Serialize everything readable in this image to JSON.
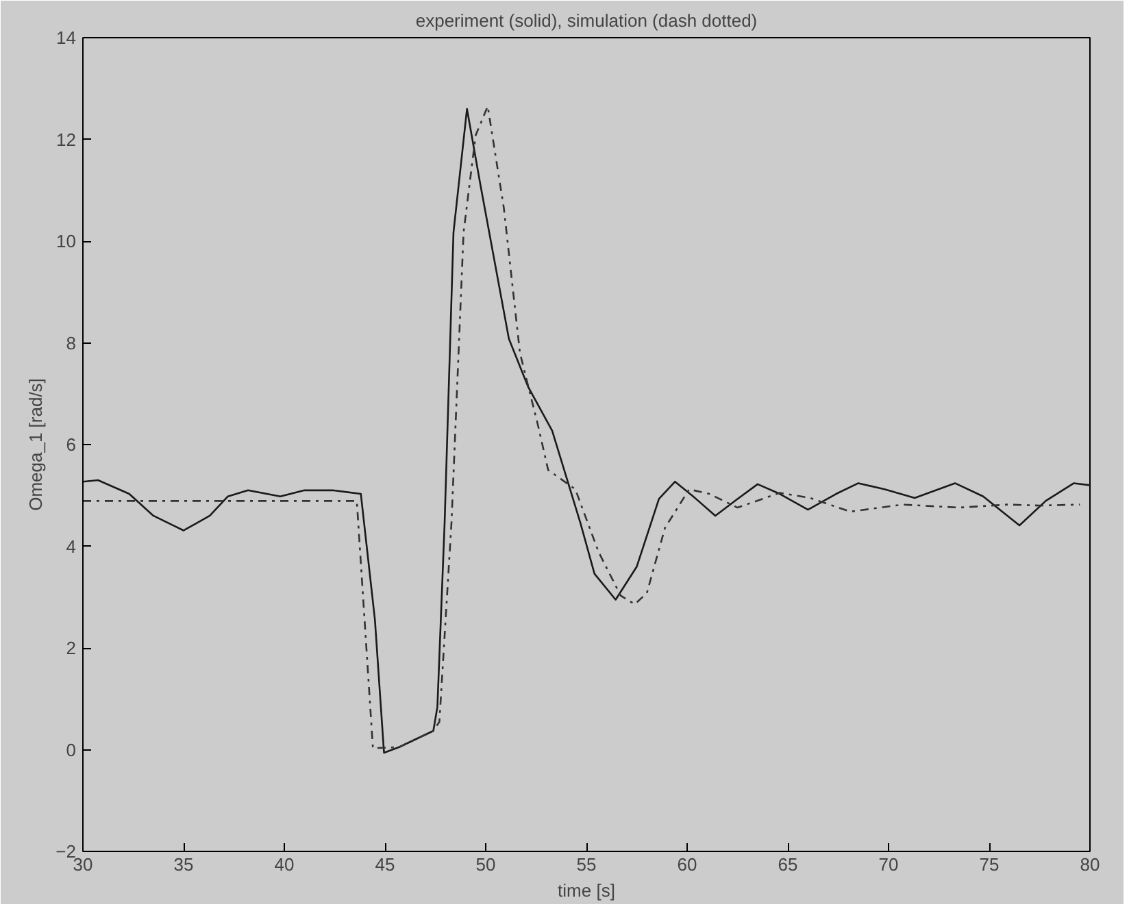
{
  "chart_data": {
    "type": "line",
    "title": "experiment (solid), simulation (dash dotted)",
    "xlabel": "time [s]",
    "ylabel": "Omega_1 [rad/s]",
    "xlim": [
      30,
      80
    ],
    "xticks": [
      30,
      35,
      40,
      45,
      50,
      55,
      60,
      65,
      70,
      75,
      80
    ],
    "ylim": [
      -2,
      14
    ],
    "yticks": [
      -2,
      0,
      2,
      4,
      6,
      8,
      10,
      12,
      14
    ],
    "grid": false,
    "marker": "none",
    "series": [
      {
        "color": "#1a1a1a",
        "line_style": "solid",
        "x": [
          30,
          30.75,
          32.3,
          33.5,
          35.0,
          36.3,
          37.2,
          38.2,
          39.8,
          41.0,
          42.4,
          43.8,
          44.5,
          44.95,
          45.7,
          47.4,
          47.6,
          47.96,
          48.4,
          49.07,
          49.73,
          51.15,
          52.1,
          53.3,
          54.7,
          55.4,
          56.45,
          57.5,
          58.6,
          59.4,
          60.3,
          61.4,
          62.5,
          63.5,
          64.6,
          66.0,
          67.4,
          68.5,
          69.8,
          71.3,
          73.3,
          74.7,
          76.5,
          77.8,
          79.2,
          80
        ],
        "values": [
          5.27,
          5.3,
          5.03,
          4.6,
          4.31,
          4.6,
          4.98,
          5.1,
          4.98,
          5.1,
          5.1,
          5.03,
          2.55,
          -0.06,
          0.05,
          0.37,
          0.84,
          4.46,
          10.17,
          12.6,
          11.12,
          8.08,
          7.14,
          6.27,
          4.46,
          3.46,
          2.95,
          3.6,
          4.93,
          5.27,
          4.98,
          4.6,
          4.93,
          5.22,
          5.03,
          4.72,
          5.03,
          5.24,
          5.12,
          4.95,
          5.24,
          4.98,
          4.41,
          4.89,
          5.24,
          5.2
        ]
      },
      {
        "color": "#333333",
        "line_style": "dashdot",
        "x": [
          30,
          43.6,
          44.4,
          45.7,
          47.4,
          47.7,
          48.3,
          48.9,
          49.5,
          50.1,
          50.9,
          51.7,
          52.6,
          53.1,
          54.45,
          55.6,
          56.7,
          57.4,
          58.0,
          58.9,
          60.1,
          61.1,
          62.5,
          64.6,
          66.1,
          68.1,
          70.7,
          73.5,
          75.9,
          77.5,
          79.5
        ],
        "values": [
          4.89,
          4.89,
          0.03,
          0.05,
          0.37,
          0.55,
          4.46,
          10.17,
          12.08,
          12.65,
          10.65,
          7.8,
          6.37,
          5.5,
          5.12,
          3.89,
          3.03,
          2.86,
          3.08,
          4.36,
          5.12,
          5.03,
          4.76,
          5.05,
          4.95,
          4.68,
          4.82,
          4.76,
          4.82,
          4.8,
          4.82
        ]
      }
    ]
  }
}
